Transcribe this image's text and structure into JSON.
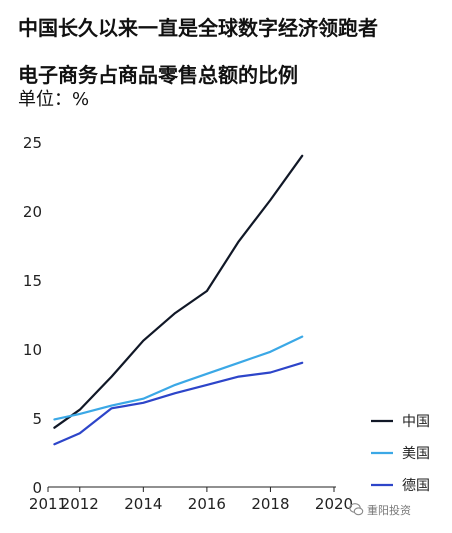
{
  "headline": "中国长久以来一直是全球数字经济领跑者",
  "watermark": {
    "text": "重阳投资",
    "icon": "wechat-icon"
  },
  "chart_data": {
    "type": "line",
    "title": "电子商务占商品零售总额的比例",
    "unit_label": "单位：%",
    "xlim": [
      2011,
      2020
    ],
    "ylim": [
      0,
      25
    ],
    "x_ticks": [
      2011,
      2012,
      2014,
      2016,
      2018,
      2020
    ],
    "y_ticks": [
      0,
      5,
      10,
      15,
      20,
      25
    ],
    "grid": false,
    "legend_position": "right",
    "series": [
      {
        "name": "中国",
        "color": "#111827",
        "points": [
          [
            2011.2,
            4.3
          ],
          [
            2012,
            5.6
          ],
          [
            2013,
            8.0
          ],
          [
            2014,
            10.6
          ],
          [
            2015,
            12.6
          ],
          [
            2016,
            14.2
          ],
          [
            2017,
            17.8
          ],
          [
            2018,
            20.8
          ],
          [
            2019,
            24.0
          ]
        ]
      },
      {
        "name": "美国",
        "color": "#3ba8e6",
        "points": [
          [
            2011.2,
            4.9
          ],
          [
            2012,
            5.3
          ],
          [
            2013,
            5.9
          ],
          [
            2014,
            6.4
          ],
          [
            2015,
            7.4
          ],
          [
            2016,
            8.2
          ],
          [
            2017,
            9.0
          ],
          [
            2018,
            9.8
          ],
          [
            2019,
            10.9
          ]
        ]
      },
      {
        "name": "德国",
        "color": "#2d45c9",
        "points": [
          [
            2011.2,
            3.1
          ],
          [
            2012,
            3.9
          ],
          [
            2013,
            5.7
          ],
          [
            2014,
            6.1
          ],
          [
            2015,
            6.8
          ],
          [
            2016,
            7.4
          ],
          [
            2017,
            8.0
          ],
          [
            2018,
            8.3
          ],
          [
            2019,
            9.0
          ]
        ]
      }
    ]
  }
}
